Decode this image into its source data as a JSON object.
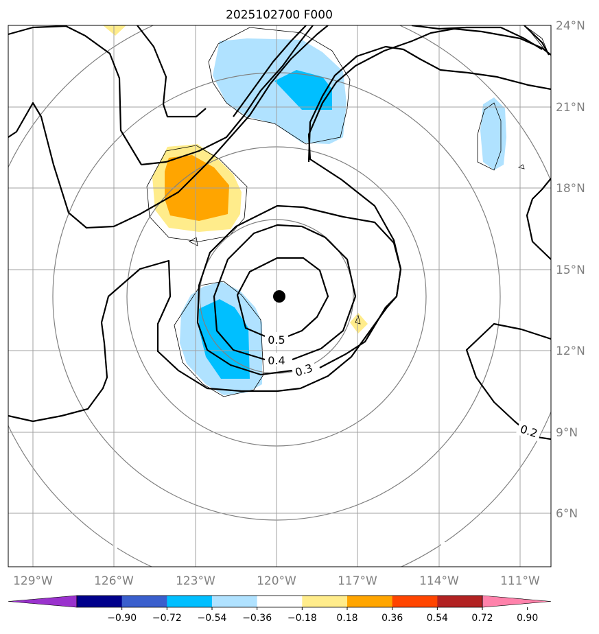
{
  "title": "2025102700 F000",
  "map": {
    "lon_range": [
      -130,
      -110
    ],
    "lat_range": [
      4,
      24
    ],
    "center": {
      "lon": -120,
      "lat": 14
    },
    "lat_ticks": [
      {
        "value": 24,
        "label": "24°N"
      },
      {
        "value": 21,
        "label": "21°N"
      },
      {
        "value": 18,
        "label": "18°N"
      },
      {
        "value": 15,
        "label": "15°N"
      },
      {
        "value": 12,
        "label": "12°N"
      },
      {
        "value": 9,
        "label": "9°N"
      },
      {
        "value": 6,
        "label": "6°N"
      }
    ],
    "lon_ticks": [
      {
        "value": -129,
        "label": "129°W"
      },
      {
        "value": -126,
        "label": "126°W"
      },
      {
        "value": -123,
        "label": "123°W"
      },
      {
        "value": -120,
        "label": "120°W"
      },
      {
        "value": -117,
        "label": "117°W"
      },
      {
        "value": -114,
        "label": "114°W"
      },
      {
        "value": -111,
        "label": "111°W"
      }
    ],
    "contour_labels": [
      "0.5",
      "0.4",
      "0.3",
      "0.2"
    ],
    "colors": {
      "grid": "#a0a0a0",
      "range_ring": "#808080",
      "contour": "#000000",
      "center_marker": "#000000"
    }
  },
  "colorbar": {
    "ticks": [
      "−0.90",
      "−0.72",
      "−0.54",
      "−0.36",
      "−0.18",
      "0.18",
      "0.36",
      "0.54",
      "0.72",
      "0.90"
    ],
    "colors": [
      "#9a32cd",
      "#00008b",
      "#3a5fcd",
      "#00bfff",
      "#b0e2ff",
      "#ffffff",
      "#ffec8b",
      "#ffa500",
      "#ff4500",
      "#b22222",
      "#ff82ab"
    ]
  }
}
